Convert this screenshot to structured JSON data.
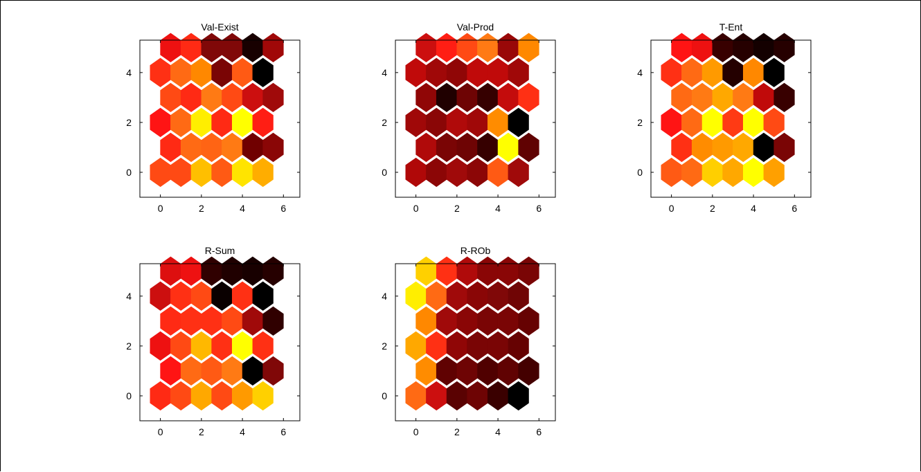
{
  "chart_data": [
    {
      "type": "heatmap",
      "title": "Val-Exist",
      "xlim": [
        -1,
        6.8
      ],
      "ylim": [
        -1,
        5.3
      ],
      "xticks": [
        0,
        2,
        4,
        6
      ],
      "yticks": [
        0,
        2,
        4
      ],
      "rows": [
        [
          "#ff4a14",
          "#ff4a14",
          "#ffbf00",
          "#ff5a14",
          "#ffe400",
          "#ffad00"
        ],
        [
          "#ff2a14",
          "#ff6a14",
          "#ff6414",
          "#ff7a14",
          "#700000",
          "#8a0606"
        ],
        [
          "#ff1414",
          "#ff6a14",
          "#ffee00",
          "#ff2a14",
          "#ffff00",
          "#ff1e14"
        ],
        [
          "#ff4a14",
          "#ff2a14",
          "#ff7a14",
          "#ff4a14",
          "#cc0f0f",
          "#a00a0a"
        ],
        [
          "#ff3014",
          "#ff6a14",
          "#ff8800",
          "#7a0505",
          "#ff5a14",
          "#000000"
        ],
        [
          "#ee1111",
          "#ff2a14",
          "#800808",
          "#800808",
          "#180000",
          "#a00808"
        ]
      ]
    },
    {
      "type": "heatmap",
      "title": "Val-Prod",
      "xlim": [
        -1,
        6.8
      ],
      "ylim": [
        -1,
        5.3
      ],
      "xticks": [
        0,
        2,
        4,
        6
      ],
      "yticks": [
        0,
        2,
        4
      ],
      "rows": [
        [
          "#b00808",
          "#8c0606",
          "#a00a0a",
          "#8c0606",
          "#ff5a14",
          "#a00a0a"
        ],
        [
          "#b00a0a",
          "#7a0505",
          "#6e0404",
          "#360000",
          "#ffff00",
          "#600202"
        ],
        [
          "#a00808",
          "#8a0606",
          "#b00a0a",
          "#a00808",
          "#ff8c00",
          "#000000"
        ],
        [
          "#900606",
          "#200000",
          "#6e0404",
          "#360000",
          "#c40c0c",
          "#ff3014"
        ],
        [
          "#c00a0a",
          "#a00808",
          "#900606",
          "#c00a0a",
          "#c00a0a",
          "#a00808"
        ],
        [
          "#cc0f0f",
          "#ff1e14",
          "#ff4a14",
          "#ff7a14",
          "#990808",
          "#ff8800"
        ]
      ]
    },
    {
      "type": "heatmap",
      "title": "T-Ent",
      "xlim": [
        -1,
        6.8
      ],
      "ylim": [
        -1,
        5.3
      ],
      "xticks": [
        0,
        2,
        4,
        6
      ],
      "yticks": [
        0,
        2,
        4
      ],
      "rows": [
        [
          "#ff5a14",
          "#ff6a14",
          "#ffcf00",
          "#ffa800",
          "#ffff00",
          "#ffa000"
        ],
        [
          "#ff3014",
          "#ff8c00",
          "#ff9a00",
          "#ffa800",
          "#000000",
          "#7a0505"
        ],
        [
          "#ff1414",
          "#ff6a14",
          "#ffff00",
          "#ff3a14",
          "#ffff00",
          "#ff4a14"
        ],
        [
          "#ff6a14",
          "#ff7a14",
          "#ffa800",
          "#ff7a14",
          "#c00a0a",
          "#380000"
        ],
        [
          "#ff3014",
          "#ff6a14",
          "#ff9a00",
          "#240000",
          "#ff8800",
          "#000000"
        ],
        [
          "#ff1414",
          "#ee1111",
          "#380000",
          "#260000",
          "#140000",
          "#260000"
        ]
      ]
    },
    {
      "type": "heatmap",
      "title": "R-Sum",
      "xlim": [
        -1,
        6.8
      ],
      "ylim": [
        -1,
        5.3
      ],
      "xticks": [
        0,
        2,
        4,
        6
      ],
      "yticks": [
        0,
        2,
        4
      ],
      "rows": [
        [
          "#ff2a14",
          "#ff4a14",
          "#ffa800",
          "#ff4a14",
          "#ff9a00",
          "#ffd000"
        ],
        [
          "#ff1414",
          "#ff6a14",
          "#ff5a14",
          "#ff7a14",
          "#000000",
          "#800808"
        ],
        [
          "#ee1111",
          "#ff4a14",
          "#ffb800",
          "#ff3014",
          "#ffff00",
          "#ff3014"
        ],
        [
          "#ff2a14",
          "#ff3014",
          "#ff3014",
          "#ff4a14",
          "#a00a0a",
          "#300000"
        ],
        [
          "#cc0f0f",
          "#ff3014",
          "#ff4a14",
          "#0a0000",
          "#ff3014",
          "#000000"
        ],
        [
          "#dd0f0f",
          "#ee1111",
          "#300000",
          "#200000",
          "#180000",
          "#260000"
        ]
      ]
    },
    {
      "type": "heatmap",
      "title": "R-ROb",
      "xlim": [
        -1,
        6.8
      ],
      "ylim": [
        -1,
        5.3
      ],
      "xticks": [
        0,
        2,
        4,
        6
      ],
      "yticks": [
        0,
        2,
        4
      ],
      "rows": [
        [
          "#ff6a14",
          "#cc0f0f",
          "#5a0202",
          "#6e0404",
          "#3a0000",
          "#000000"
        ],
        [
          "#ff8c00",
          "#600202",
          "#6e0404",
          "#500000",
          "#600202",
          "#440000"
        ],
        [
          "#ffa800",
          "#ff3014",
          "#900606",
          "#7a0505",
          "#7a0505",
          "#660202"
        ],
        [
          "#ff8800",
          "#a00a0a",
          "#8a0606",
          "#7a0505",
          "#7a0505",
          "#660202"
        ],
        [
          "#ffee00",
          "#ff6a14",
          "#a00a0a",
          "#8a0606",
          "#800808",
          "#700505"
        ],
        [
          "#ffd000",
          "#ff3014",
          "#b00a0a",
          "#8a0606",
          "#8a0606",
          "#7a0505"
        ]
      ]
    }
  ]
}
